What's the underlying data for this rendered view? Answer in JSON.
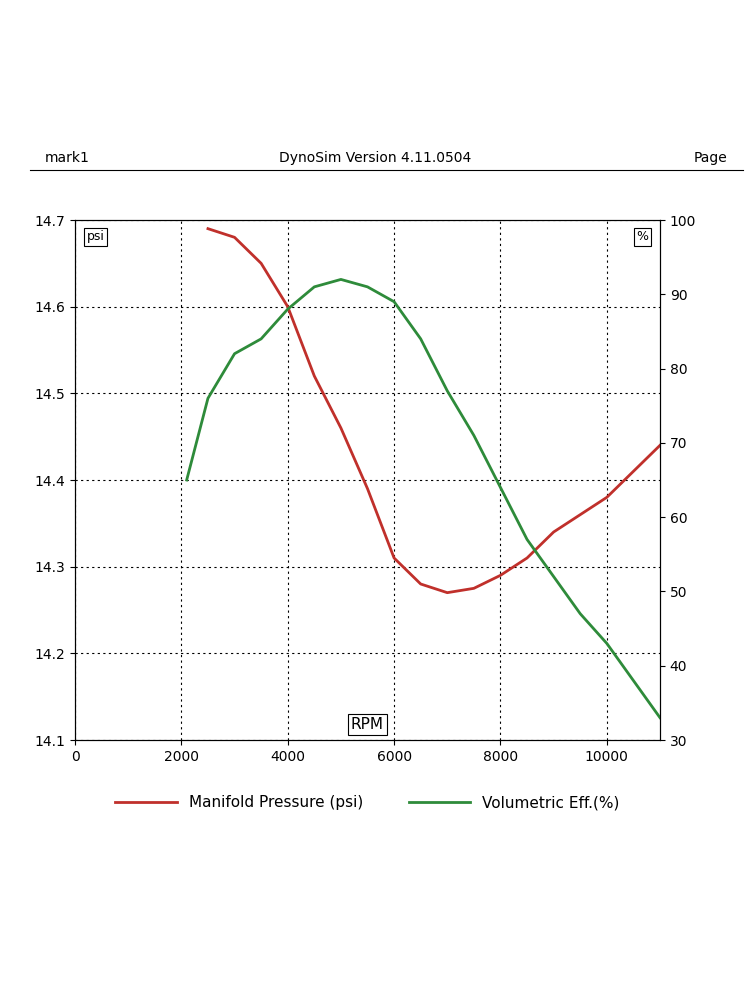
{
  "chart_data": {
    "type": "line",
    "title": "DynoSim Version 4.11.0504",
    "header_left": "mark1",
    "header_right": "Page",
    "x_label": "RPM",
    "y_label": "psi",
    "y2_label": "%",
    "xlim": [
      0,
      11000
    ],
    "xticks": [
      0,
      2000,
      4000,
      6000,
      8000,
      10000
    ],
    "ylim": [
      14.1,
      14.7
    ],
    "yticks": [
      14.1,
      14.2,
      14.3,
      14.4,
      14.5,
      14.6,
      14.7
    ],
    "y2lim": [
      30,
      100
    ],
    "y2ticks": [
      30,
      40,
      50,
      60,
      70,
      80,
      90,
      100
    ],
    "grid": true,
    "legend": "below",
    "series": [
      {
        "name": "Manifold Pressure (psi)",
        "color": "#c0302b",
        "axis": "y",
        "x": [
          2500,
          3000,
          3500,
          4000,
          4500,
          5000,
          5500,
          6000,
          6500,
          7000,
          7500,
          8000,
          8500,
          9000,
          9500,
          10000,
          10500,
          11000
        ],
        "values": [
          14.69,
          14.68,
          14.65,
          14.6,
          14.52,
          14.46,
          14.39,
          14.31,
          14.28,
          14.27,
          14.275,
          14.29,
          14.31,
          14.34,
          14.36,
          14.38,
          14.41,
          14.44
        ]
      },
      {
        "name": "Volumetric Eff.(%)",
        "color": "#2e8b3a",
        "axis": "y2",
        "x": [
          2100,
          2500,
          3000,
          3500,
          4000,
          4500,
          5000,
          5500,
          6000,
          6500,
          7000,
          7500,
          8000,
          8500,
          9000,
          9500,
          10000,
          10500,
          11000
        ],
        "values": [
          65,
          76,
          82,
          84,
          88,
          91,
          92,
          91,
          89,
          84,
          77,
          71,
          64,
          57,
          52,
          47,
          43,
          38,
          33
        ]
      }
    ]
  }
}
